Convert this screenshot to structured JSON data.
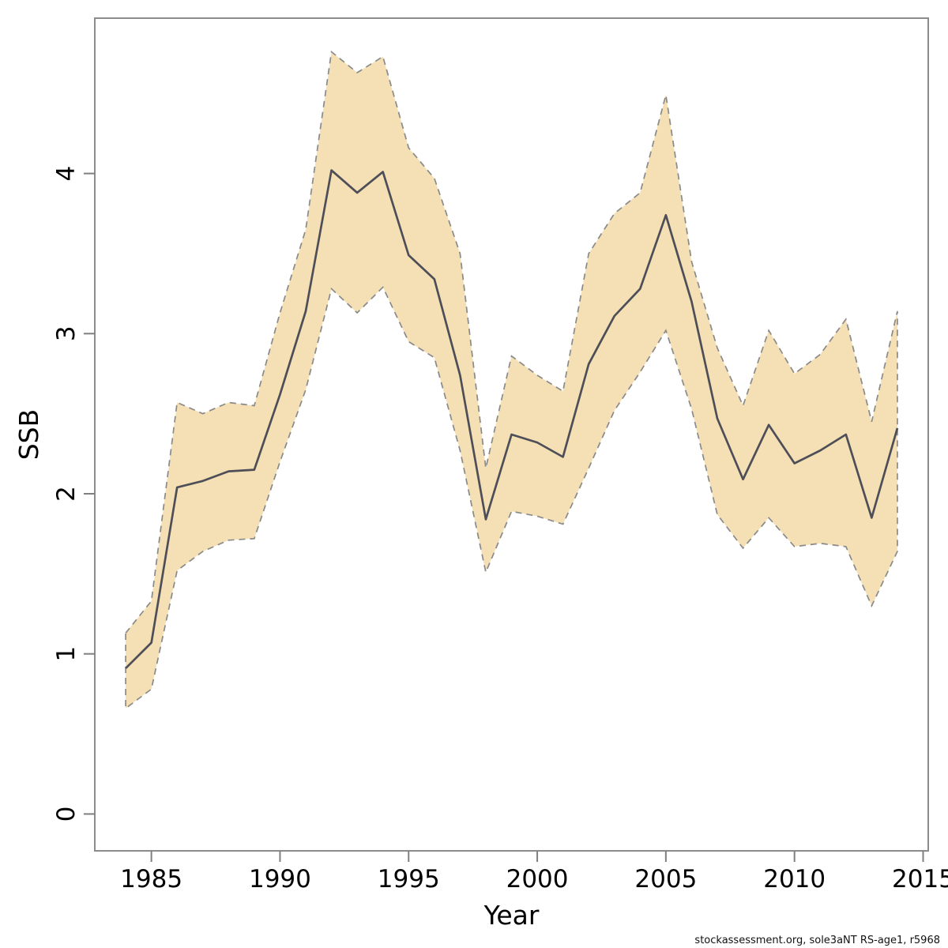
{
  "figure": {
    "footer": "stockassessment.org, sole3aNT RS-age1, r5968"
  },
  "chart_data": {
    "type": "line",
    "title": "",
    "xlabel": "Year",
    "ylabel": "SSB",
    "legend_position": "none",
    "grid": false,
    "xlim": [
      1982.8,
      2015.2
    ],
    "ylim": [
      -0.23,
      4.97
    ],
    "x_ticks": [
      1985,
      1990,
      1995,
      2000,
      2005,
      2010,
      2015
    ],
    "y_ticks": [
      0,
      1,
      2,
      3,
      4
    ],
    "x": [
      1984,
      1985,
      1986,
      1987,
      1988,
      1989,
      1990,
      1991,
      1992,
      1993,
      1994,
      1995,
      1996,
      1997,
      1998,
      1999,
      2000,
      2001,
      2002,
      2003,
      2004,
      2005,
      2006,
      2007,
      2008,
      2009,
      2010,
      2011,
      2012,
      2013,
      2014
    ],
    "series": [
      {
        "name": "SSB estimate",
        "style": "solid",
        "values": [
          0.91,
          1.07,
          2.04,
          2.08,
          2.14,
          2.15,
          2.62,
          3.14,
          4.02,
          3.88,
          4.01,
          3.49,
          3.34,
          2.74,
          1.84,
          2.37,
          2.32,
          2.23,
          2.81,
          3.11,
          3.28,
          3.74,
          3.2,
          2.47,
          2.09,
          2.43,
          2.19,
          2.27,
          2.37,
          1.85,
          2.41
        ]
      }
    ],
    "band": {
      "name": "confidence-interval",
      "lower": [
        0.66,
        0.78,
        1.52,
        1.64,
        1.71,
        1.72,
        2.2,
        2.65,
        3.28,
        3.13,
        3.29,
        2.95,
        2.85,
        2.27,
        1.51,
        1.89,
        1.86,
        1.81,
        2.16,
        2.52,
        2.76,
        3.02,
        2.53,
        1.87,
        1.66,
        1.85,
        1.67,
        1.69,
        1.67,
        1.3,
        1.64
      ],
      "upper": [
        1.13,
        1.33,
        2.57,
        2.5,
        2.57,
        2.55,
        3.13,
        3.65,
        4.76,
        4.63,
        4.73,
        4.16,
        3.97,
        3.5,
        2.16,
        2.86,
        2.74,
        2.64,
        3.5,
        3.75,
        3.88,
        4.49,
        3.45,
        2.91,
        2.55,
        3.02,
        2.75,
        2.87,
        3.09,
        2.45,
        3.14
      ]
    },
    "colors": {
      "background": "#ffffff",
      "band_fill": "#f4e0b4",
      "band_border": "#8a8a8a",
      "line": "#4e4e58",
      "axis_box": "#8c8c8c",
      "tick": "#7f7f7f",
      "tick_label": "#000000",
      "axis_title": "#000000"
    }
  }
}
